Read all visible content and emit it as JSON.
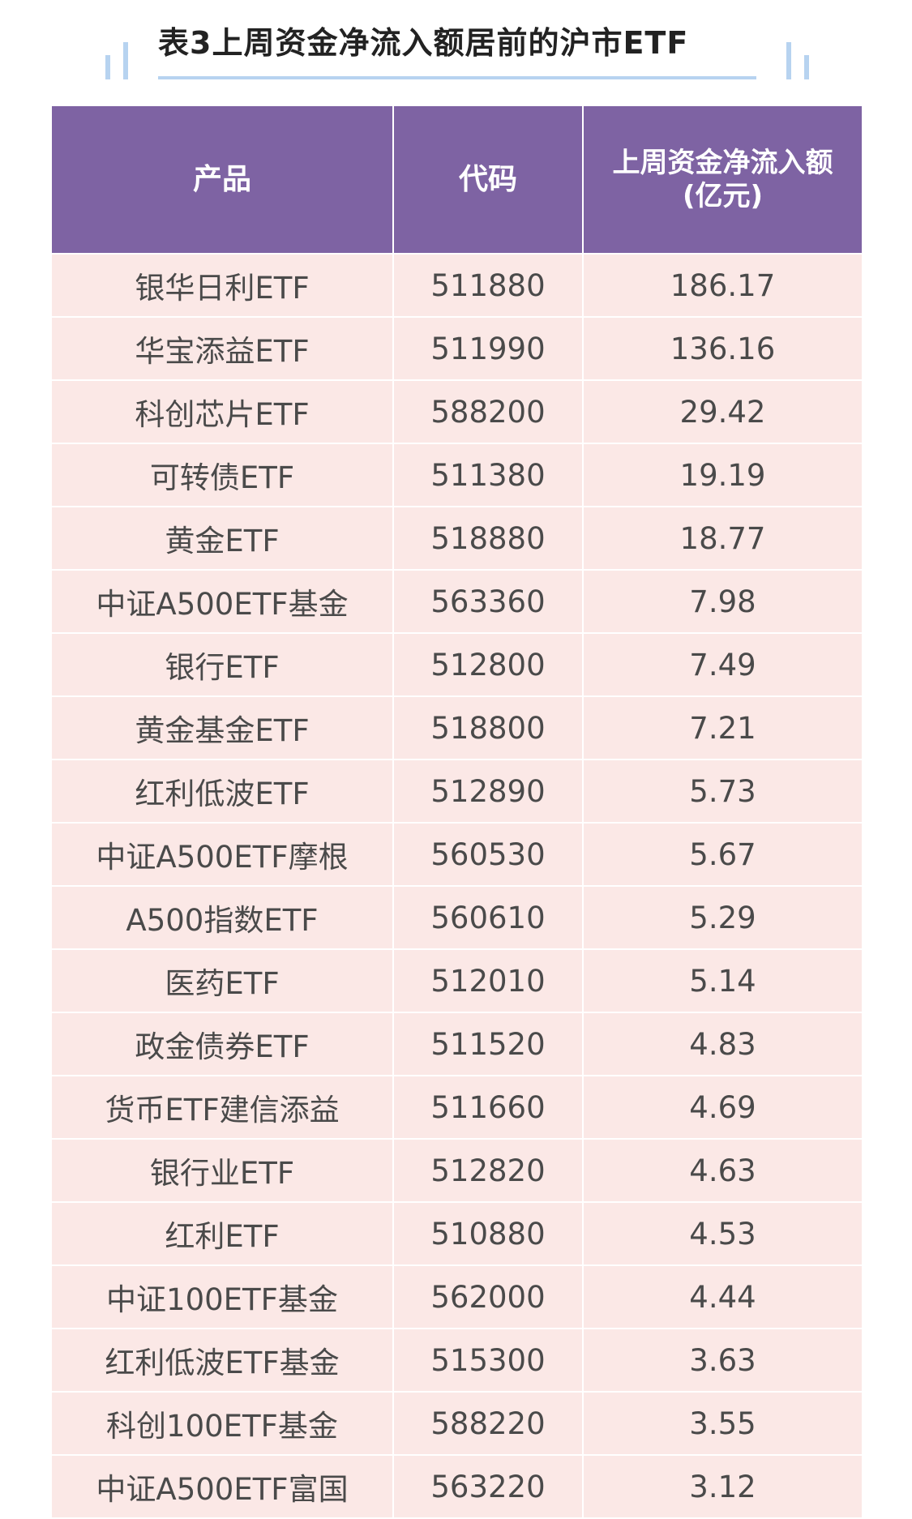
{
  "title": "表3上周资金净流入额居前的沪市ETF",
  "colors": {
    "header_bg": "#7e63a3",
    "row_bg": "#fbe8e6",
    "accent_line": "#b7d3f0"
  },
  "table": {
    "headers": [
      "产品",
      "代码",
      "上周资金净流入额\n(亿元)"
    ],
    "header_line1": "上周资金净流入额",
    "header_line2": "(亿元)",
    "rows": [
      [
        "银华日利ETF",
        "511880",
        "186.17"
      ],
      [
        "华宝添益ETF",
        "511990",
        "136.16"
      ],
      [
        "科创芯片ETF",
        "588200",
        "29.42"
      ],
      [
        "可转债ETF",
        "511380",
        "19.19"
      ],
      [
        "黄金ETF",
        "518880",
        "18.77"
      ],
      [
        "中证A500ETF基金",
        "563360",
        "7.98"
      ],
      [
        "银行ETF",
        "512800",
        "7.49"
      ],
      [
        "黄金基金ETF",
        "518800",
        "7.21"
      ],
      [
        "红利低波ETF",
        "512890",
        "5.73"
      ],
      [
        "中证A500ETF摩根",
        "560530",
        "5.67"
      ],
      [
        "A500指数ETF",
        "560610",
        "5.29"
      ],
      [
        "医药ETF",
        "512010",
        "5.14"
      ],
      [
        "政金债券ETF",
        "511520",
        "4.83"
      ],
      [
        "货币ETF建信添益",
        "511660",
        "4.69"
      ],
      [
        "银行业ETF",
        "512820",
        "4.63"
      ],
      [
        "红利ETF",
        "510880",
        "4.53"
      ],
      [
        "中证100ETF基金",
        "562000",
        "4.44"
      ],
      [
        "红利低波ETF基金",
        "515300",
        "3.63"
      ],
      [
        "科创100ETF基金",
        "588220",
        "3.55"
      ],
      [
        "中证A500ETF富国",
        "563220",
        "3.12"
      ]
    ]
  }
}
